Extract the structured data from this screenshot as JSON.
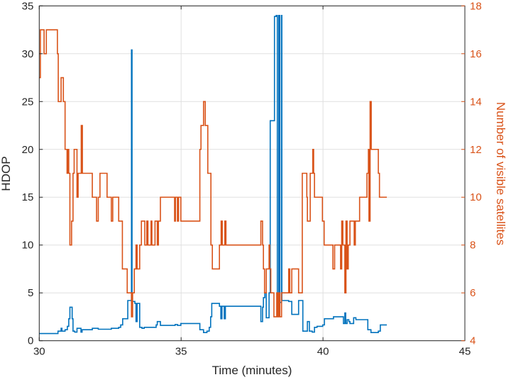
{
  "chart_data": {
    "type": "line",
    "title": "",
    "xlabel": "Time (minutes)",
    "ylabel": "HDOP",
    "ylabel_right": "Number of visible satellites",
    "xlim": [
      30,
      45
    ],
    "ylim": [
      0,
      35
    ],
    "ylim_right": [
      4,
      18
    ],
    "xticks": [
      30,
      35,
      40,
      45
    ],
    "yticks": [
      0,
      5,
      10,
      15,
      20,
      25,
      30,
      35
    ],
    "yticks_right": [
      4,
      6,
      8,
      10,
      12,
      14,
      16,
      18
    ],
    "grid": true,
    "step": true,
    "series": [
      {
        "name": "HDOP",
        "axis": "left",
        "color": "#0072BD",
        "points": [
          [
            30.0,
            0.75
          ],
          [
            30.66,
            1.0
          ],
          [
            30.77,
            1.3
          ],
          [
            30.8,
            1.0
          ],
          [
            30.91,
            1.15
          ],
          [
            30.99,
            1.5
          ],
          [
            31.04,
            2.3
          ],
          [
            31.08,
            3.5
          ],
          [
            31.16,
            2.3
          ],
          [
            31.19,
            1.0
          ],
          [
            31.25,
            0.9
          ],
          [
            31.33,
            1.3
          ],
          [
            31.47,
            0.9
          ],
          [
            31.51,
            1.15
          ],
          [
            31.87,
            1.3
          ],
          [
            32.08,
            1.2
          ],
          [
            32.54,
            1.3
          ],
          [
            32.8,
            1.4
          ],
          [
            32.87,
            1.65
          ],
          [
            32.94,
            2.3
          ],
          [
            33.12,
            4.2
          ],
          [
            33.25,
            30.4
          ],
          [
            33.27,
            4.1
          ],
          [
            33.37,
            3.9
          ],
          [
            33.41,
            2.0
          ],
          [
            33.45,
            3.9
          ],
          [
            33.54,
            1.4
          ],
          [
            33.62,
            1.3
          ],
          [
            33.7,
            1.4
          ],
          [
            34.12,
            1.65
          ],
          [
            34.16,
            2.0
          ],
          [
            34.27,
            1.6
          ],
          [
            34.79,
            1.7
          ],
          [
            34.87,
            1.6
          ],
          [
            34.99,
            1.8
          ],
          [
            35.66,
            1.15
          ],
          [
            35.79,
            0.85
          ],
          [
            35.91,
            1.0
          ],
          [
            35.99,
            1.4
          ],
          [
            36.04,
            2.5
          ],
          [
            36.08,
            3.9
          ],
          [
            36.35,
            3.6
          ],
          [
            36.4,
            2.3
          ],
          [
            36.44,
            3.6
          ],
          [
            36.52,
            2.3
          ],
          [
            36.56,
            3.6
          ],
          [
            37.81,
            2.0
          ],
          [
            37.87,
            3.5
          ],
          [
            37.9,
            4.5
          ],
          [
            37.95,
            5.0
          ],
          [
            38.0,
            2.4
          ],
          [
            38.1,
            5.0
          ],
          [
            38.14,
            23.0
          ],
          [
            38.29,
            33.9
          ],
          [
            38.35,
            34.0
          ],
          [
            38.39,
            3.75
          ],
          [
            38.44,
            34.0
          ],
          [
            38.48,
            4.0
          ],
          [
            38.54,
            34.0
          ],
          [
            38.55,
            4.2
          ],
          [
            38.79,
            4.1
          ],
          [
            38.9,
            2.75
          ],
          [
            39.14,
            4.2
          ],
          [
            39.29,
            1.0
          ],
          [
            39.45,
            2.0
          ],
          [
            39.52,
            1.0
          ],
          [
            39.62,
            0.9
          ],
          [
            39.7,
            1.4
          ],
          [
            39.79,
            1.5
          ],
          [
            39.99,
            1.65
          ],
          [
            40.05,
            2.3
          ],
          [
            40.37,
            2.5
          ],
          [
            40.72,
            1.8
          ],
          [
            40.77,
            2.9
          ],
          [
            40.8,
            1.8
          ],
          [
            40.85,
            2.2
          ],
          [
            40.91,
            2.0
          ],
          [
            40.95,
            1.8
          ],
          [
            41.08,
            2.4
          ],
          [
            41.16,
            2.2
          ],
          [
            41.58,
            1.15
          ],
          [
            41.69,
            0.85
          ],
          [
            41.95,
            1.0
          ],
          [
            42.02,
            1.65
          ],
          [
            42.25,
            1.65
          ]
        ]
      },
      {
        "name": "Number of visible satellites",
        "axis": "right",
        "color": "#D95319",
        "points": [
          [
            30.0,
            15
          ],
          [
            30.04,
            17
          ],
          [
            30.17,
            16
          ],
          [
            30.25,
            17
          ],
          [
            30.64,
            16
          ],
          [
            30.67,
            14
          ],
          [
            30.77,
            15
          ],
          [
            30.85,
            14
          ],
          [
            30.91,
            12
          ],
          [
            30.98,
            11
          ],
          [
            31.02,
            12
          ],
          [
            31.04,
            11
          ],
          [
            31.08,
            8
          ],
          [
            31.14,
            9
          ],
          [
            31.19,
            11
          ],
          [
            31.23,
            12
          ],
          [
            31.33,
            10
          ],
          [
            31.37,
            11
          ],
          [
            31.48,
            13
          ],
          [
            31.52,
            11
          ],
          [
            31.87,
            10
          ],
          [
            32.02,
            9
          ],
          [
            32.08,
            10
          ],
          [
            32.14,
            11
          ],
          [
            32.39,
            10
          ],
          [
            32.54,
            9
          ],
          [
            32.59,
            10
          ],
          [
            32.8,
            9
          ],
          [
            32.93,
            7
          ],
          [
            33.1,
            6
          ],
          [
            33.25,
            5
          ],
          [
            33.29,
            6
          ],
          [
            33.35,
            7
          ],
          [
            33.41,
            8
          ],
          [
            33.45,
            7
          ],
          [
            33.54,
            8
          ],
          [
            33.6,
            9
          ],
          [
            33.72,
            8
          ],
          [
            33.79,
            9
          ],
          [
            33.83,
            8
          ],
          [
            33.94,
            9
          ],
          [
            33.97,
            8
          ],
          [
            34.08,
            9
          ],
          [
            34.16,
            8
          ],
          [
            34.2,
            9
          ],
          [
            34.27,
            10
          ],
          [
            34.77,
            9
          ],
          [
            34.8,
            10
          ],
          [
            34.87,
            9
          ],
          [
            34.91,
            10
          ],
          [
            34.99,
            9
          ],
          [
            35.66,
            12
          ],
          [
            35.7,
            13
          ],
          [
            35.79,
            14
          ],
          [
            35.85,
            13
          ],
          [
            35.94,
            11
          ],
          [
            36.05,
            8
          ],
          [
            36.1,
            7
          ],
          [
            36.35,
            8
          ],
          [
            36.41,
            9
          ],
          [
            36.45,
            8
          ],
          [
            36.54,
            9
          ],
          [
            36.58,
            8
          ],
          [
            37.81,
            9
          ],
          [
            37.87,
            8
          ],
          [
            37.9,
            7
          ],
          [
            37.94,
            6
          ],
          [
            38.0,
            7
          ],
          [
            38.1,
            8
          ],
          [
            38.12,
            7
          ],
          [
            38.16,
            6
          ],
          [
            38.27,
            5
          ],
          [
            38.37,
            6
          ],
          [
            38.4,
            5
          ],
          [
            38.44,
            6
          ],
          [
            38.48,
            5
          ],
          [
            38.54,
            6
          ],
          [
            38.79,
            7
          ],
          [
            38.83,
            6
          ],
          [
            38.9,
            7
          ],
          [
            39.14,
            6
          ],
          [
            39.27,
            11
          ],
          [
            39.43,
            10
          ],
          [
            39.45,
            9
          ],
          [
            39.55,
            11
          ],
          [
            39.64,
            12
          ],
          [
            39.67,
            11
          ],
          [
            39.7,
            10
          ],
          [
            39.98,
            9
          ],
          [
            40.04,
            8
          ],
          [
            40.35,
            7
          ],
          [
            40.41,
            8
          ],
          [
            40.62,
            7
          ],
          [
            40.66,
            9
          ],
          [
            40.7,
            8
          ],
          [
            40.77,
            6
          ],
          [
            40.81,
            9
          ],
          [
            40.85,
            7
          ],
          [
            40.89,
            8
          ],
          [
            40.95,
            9
          ],
          [
            41.1,
            8
          ],
          [
            41.14,
            9
          ],
          [
            41.29,
            10
          ],
          [
            41.55,
            11
          ],
          [
            41.6,
            12
          ],
          [
            41.62,
            9
          ],
          [
            41.66,
            14
          ],
          [
            41.7,
            12
          ],
          [
            41.95,
            11
          ],
          [
            41.99,
            10
          ],
          [
            42.25,
            10
          ]
        ]
      }
    ]
  }
}
